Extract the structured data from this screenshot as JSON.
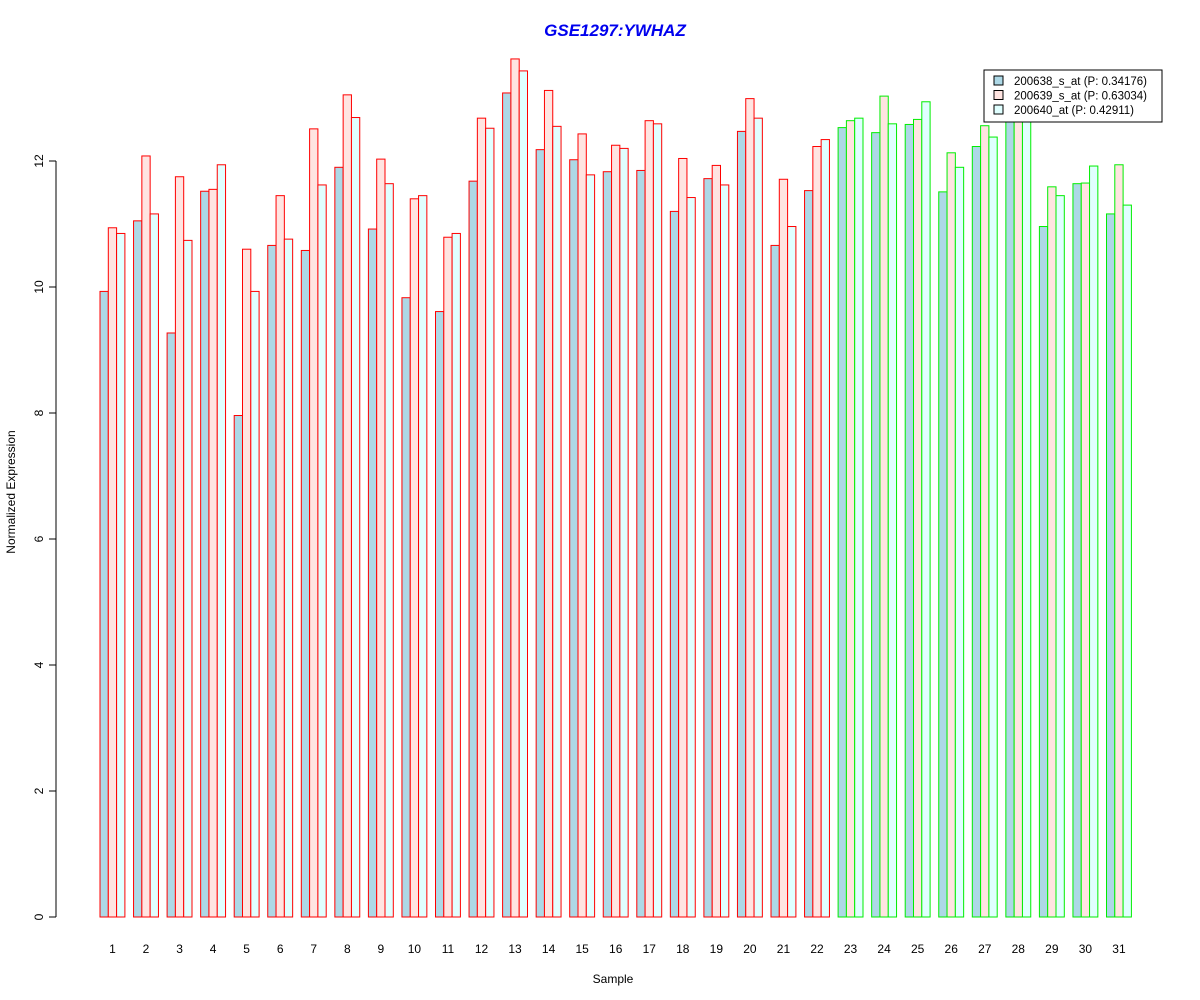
{
  "chart_data": {
    "type": "bar",
    "title": "GSE1297:YWHAZ",
    "xlabel": "Sample",
    "ylabel": "Normalized Expression",
    "ylim": [
      0,
      13.7
    ],
    "yticks": [
      0,
      2,
      4,
      6,
      8,
      10,
      12
    ],
    "categories": [
      "1",
      "2",
      "3",
      "4",
      "5",
      "6",
      "7",
      "8",
      "9",
      "10",
      "11",
      "12",
      "13",
      "14",
      "15",
      "16",
      "17",
      "18",
      "19",
      "20",
      "21",
      "22",
      "23",
      "24",
      "25",
      "26",
      "27",
      "28",
      "29",
      "30",
      "31"
    ],
    "series": [
      {
        "name": "200638_s_at (P: 0.34176)",
        "fill": "#add8e6",
        "values": [
          9.93,
          11.05,
          9.27,
          11.52,
          7.96,
          10.66,
          10.58,
          11.9,
          10.92,
          9.83,
          9.61,
          11.68,
          13.08,
          12.18,
          12.02,
          11.83,
          11.85,
          11.2,
          11.72,
          12.47,
          10.66,
          11.53,
          12.53,
          12.45,
          12.58,
          11.51,
          12.23,
          12.65,
          10.96,
          11.64,
          11.16
        ]
      },
      {
        "name": "200639_s_at (P: 0.63034)",
        "fill": "#ffe4e1",
        "values": [
          10.94,
          12.08,
          11.75,
          11.55,
          10.6,
          11.45,
          12.51,
          13.05,
          12.03,
          11.4,
          10.79,
          12.68,
          13.62,
          13.12,
          12.43,
          12.25,
          12.64,
          12.04,
          11.93,
          12.99,
          11.71,
          12.23,
          12.64,
          13.03,
          12.66,
          12.13,
          12.56,
          12.7,
          11.59,
          11.65,
          11.94
        ]
      },
      {
        "name": "200640_at (P: 0.42911)",
        "fill": "#e0ffff",
        "values": [
          10.85,
          11.16,
          10.74,
          11.94,
          9.93,
          10.76,
          11.62,
          12.69,
          11.64,
          11.45,
          10.85,
          12.52,
          13.43,
          12.55,
          11.78,
          12.2,
          12.59,
          11.42,
          11.62,
          12.68,
          10.96,
          12.34,
          12.68,
          12.59,
          12.94,
          11.9,
          12.38,
          12.7,
          11.45,
          11.92,
          11.3
        ]
      }
    ],
    "group_colors": {
      "first_group": "#ff0000",
      "second_group": "#00ee00",
      "first_group_count": 22
    },
    "legend_position": "top-right",
    "grid": false
  }
}
